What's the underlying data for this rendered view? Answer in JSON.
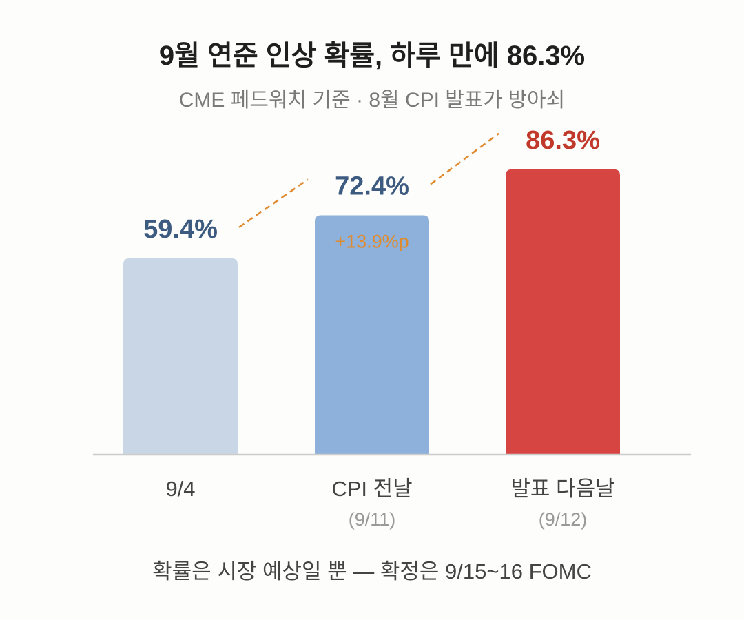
{
  "header": {
    "title": "9월 연준 인상 확률, 하루 만에 86.3%",
    "subtitle": "CME 페드워치 기준 · 8월 CPI 발표가 방아쇠"
  },
  "footnote": "확률은 시장 예상일 뿐 — 확정은 9/15~16 FOMC",
  "colors": {
    "bar_1": "#c9d6e6",
    "bar_2": "#8db1da",
    "bar_3": "#d64541",
    "label_blue": "#3d5a80",
    "label_red": "#c0392b",
    "accent_orange": "#e08a2e",
    "axis": "#cccccc",
    "tick_main": "#444444",
    "tick_sub": "#999999"
  },
  "chart_data": {
    "type": "bar",
    "title": "9월 연준 인상 확률, 하루 만에 86.3%",
    "subtitle": "CME 페드워치 기준 · 8월 CPI 발표가 방아쇠",
    "xlabel": "",
    "ylabel": "",
    "ylim": [
      0,
      100
    ],
    "grid": false,
    "categories": [
      "9/4",
      "CPI 전날",
      "발표 다음날"
    ],
    "category_sublabels": [
      "",
      "(9/11)",
      "(9/12)"
    ],
    "values": [
      59.4,
      72.4,
      86.3
    ],
    "value_labels": [
      "59.4%",
      "72.4%",
      "86.3%"
    ],
    "annotations": [
      {
        "text": "+13.9%p",
        "from_category": "CPI 전날",
        "to_category": "발표 다음날"
      }
    ],
    "trend_line": "dashed"
  }
}
